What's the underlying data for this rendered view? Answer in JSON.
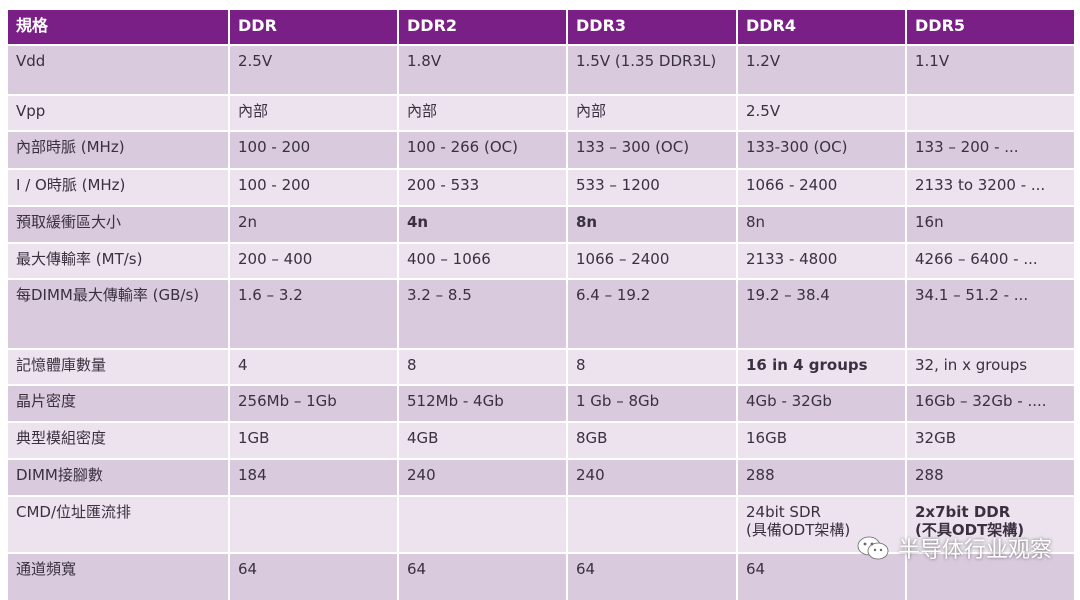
{
  "header": [
    "規格",
    "DDR",
    "DDR2",
    "DDR3",
    "DDR4",
    "DDR5"
  ],
  "rows": [
    [
      "Vdd",
      "2.5V",
      "1.8V",
      "1.5V (1.35 DDR3L)",
      "1.2V",
      "1.1V"
    ],
    [
      "Vpp",
      "內部",
      "內部",
      "內部",
      "2.5V",
      ""
    ],
    [
      "內部時脈 (MHz)",
      "100 - 200",
      "100 - 266 (OC)",
      "133 – 300 (OC)",
      "133-300 (OC)",
      "133 – 200 - ..."
    ],
    [
      "I / O時脈 (MHz)",
      "100 - 200",
      "200 - 533",
      "533 – 1200",
      "1066 - 2400",
      "2133 to 3200 - ..."
    ],
    [
      "預取緩衝區大小",
      "2n",
      "4n",
      "8n",
      "8n",
      "16n"
    ],
    [
      "最大傳輸率 (MT/s)",
      "200 – 400",
      "400 – 1066",
      "1066 – 2400",
      "2133 - 4800",
      "4266 – 6400 - ..."
    ],
    [
      "每DIMM最大傳輸率 (GB/s)",
      "1.6 – 3.2",
      "3.2 – 8.5",
      "6.4 – 19.2",
      "19.2 – 38.4",
      "34.1 – 51.2 - ..."
    ],
    [
      "記憶體庫數量",
      "4",
      "8",
      "8",
      "16 in 4 groups",
      "32, in x groups"
    ],
    [
      "晶片密度",
      "256Mb – 1Gb",
      "512Mb - 4Gb",
      "1 Gb – 8Gb",
      "4Gb - 32Gb",
      "16Gb – 32Gb - ...."
    ],
    [
      "典型模組密度",
      "1GB",
      "4GB",
      "8GB",
      "16GB",
      "32GB"
    ],
    [
      "DIMM接腳數",
      "184",
      "240",
      "240",
      "288",
      "288"
    ],
    [
      "CMD/位址匯流排",
      "",
      "",
      "",
      "24bit SDR\n(具備ODT架構)",
      "2x7bit DDR\n(不具ODT架構)"
    ],
    [
      "通道頻寬",
      "64",
      "64",
      "64",
      "64",
      ""
    ]
  ],
  "bold_cells": [
    [
      4,
      2
    ],
    [
      4,
      3
    ],
    [
      7,
      4
    ],
    [
      11,
      5
    ]
  ],
  "colors": {
    "header": "#7a1f86",
    "row_dark": "#d9cadd",
    "row_light": "#ece3ee",
    "text": "#3a3040"
  },
  "watermark": {
    "icon": "wechat-icon",
    "text": "半导体行业观察"
  }
}
